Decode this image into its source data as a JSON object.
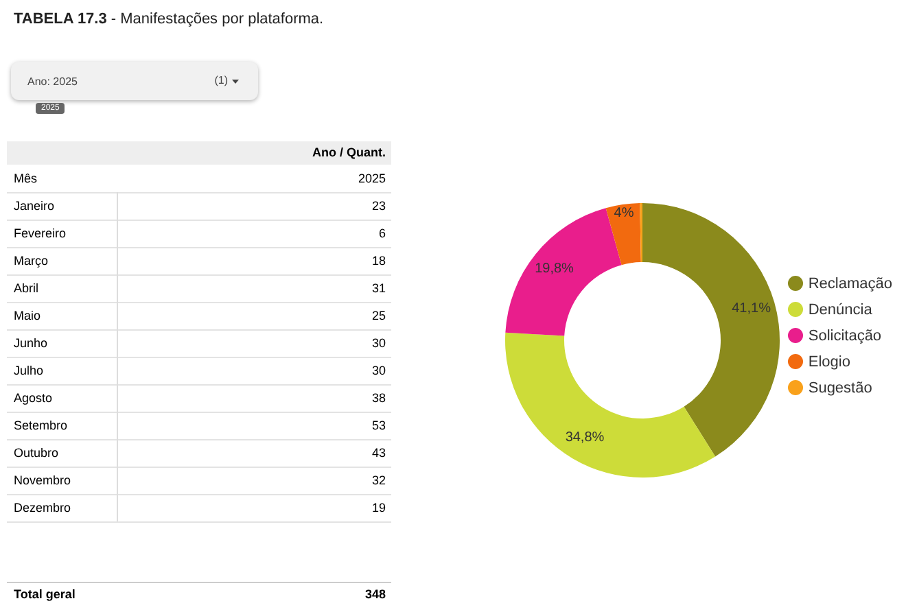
{
  "chart_data": [
    {
      "type": "other",
      "title": "TABELA 17.3 - Manifestações por plataforma.",
      "categories": [
        "Janeiro",
        "Fevereiro",
        "Março",
        "Abril",
        "Maio",
        "Junho",
        "Julho",
        "Agosto",
        "Setembro",
        "Outubro",
        "Novembro",
        "Dezembro"
      ],
      "values": [
        23,
        6,
        18,
        31,
        25,
        30,
        30,
        38,
        53,
        43,
        32,
        19
      ],
      "data_labels": true,
      "annotations": [
        "Ano: 2025",
        "(1)",
        "2025",
        "Ano / Quant.",
        "Mês",
        "2025",
        "Total geral",
        "348"
      ]
    },
    {
      "type": "donut",
      "categories": [
        "Reclamação",
        "Denúncia",
        "Solicitação",
        "Elogio",
        "Sugestão"
      ],
      "values": [
        41.1,
        34.8,
        19.8,
        4,
        0.3
      ],
      "colors": [
        "#8b8a1c",
        "#cddc39",
        "#e91e8c",
        "#f26a0f",
        "#f9a11b"
      ],
      "value_labels": [
        "41,1%",
        "34,8%",
        "19,8%",
        "4%",
        null
      ],
      "legend": "right"
    }
  ]
}
